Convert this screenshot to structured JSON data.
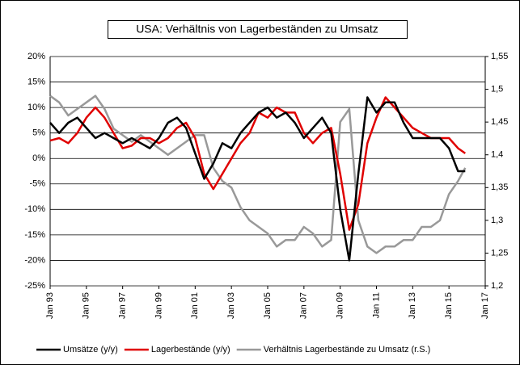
{
  "chart_data": {
    "type": "line",
    "title": "USA: Verhältnis von Lagerbeständen zu Umsatz",
    "x": [
      1993.0,
      1993.5,
      1994.0,
      1994.5,
      1995.0,
      1995.5,
      1996.0,
      1996.5,
      1997.0,
      1997.5,
      1998.0,
      1998.5,
      1999.0,
      1999.5,
      2000.0,
      2000.5,
      2001.0,
      2001.5,
      2002.0,
      2002.5,
      2003.0,
      2003.5,
      2004.0,
      2004.5,
      2005.0,
      2005.5,
      2006.0,
      2006.5,
      2007.0,
      2007.5,
      2008.0,
      2008.5,
      2009.0,
      2009.5,
      2010.0,
      2010.5,
      2011.0,
      2011.5,
      2012.0,
      2012.5,
      2013.0,
      2013.5,
      2014.0,
      2014.5,
      2015.0,
      2015.5,
      2015.9
    ],
    "series": [
      {
        "name": "Umsätze (y/y)",
        "color": "#000000",
        "values": [
          7,
          5,
          7,
          8,
          6,
          4,
          5,
          4,
          3,
          4,
          3,
          2,
          4,
          7,
          8,
          6,
          1,
          -4,
          -1,
          3,
          2,
          5,
          7,
          9,
          10,
          8,
          9,
          7,
          4,
          6,
          8,
          5,
          -10,
          -20,
          -3,
          12,
          9,
          11,
          11,
          7,
          4,
          4,
          4,
          4,
          2,
          -2.5,
          -2.5
        ]
      },
      {
        "name": "Lagerbestände (y/y)",
        "color": "#e00000",
        "values": [
          3.5,
          4,
          3,
          5,
          8,
          10,
          8,
          5,
          2,
          2.5,
          4,
          4,
          3,
          4,
          6,
          7,
          4,
          -3,
          -6,
          -3,
          0,
          3,
          5,
          9,
          8,
          10,
          9,
          9,
          5,
          3,
          5,
          6,
          -3,
          -14,
          -9,
          3,
          8,
          12,
          10,
          8,
          6,
          5,
          4,
          4,
          4,
          2,
          1
        ]
      },
      {
        "name": "Verhältnis Lagerbestände zu Umsatz (r.S.)",
        "color": "#999999",
        "axis": "y2",
        "values": [
          1.49,
          1.48,
          1.46,
          1.47,
          1.48,
          1.49,
          1.47,
          1.44,
          1.43,
          1.42,
          1.43,
          1.42,
          1.41,
          1.4,
          1.41,
          1.42,
          1.43,
          1.43,
          1.38,
          1.36,
          1.35,
          1.32,
          1.3,
          1.29,
          1.28,
          1.26,
          1.27,
          1.27,
          1.29,
          1.28,
          1.26,
          1.27,
          1.45,
          1.47,
          1.3,
          1.26,
          1.25,
          1.26,
          1.26,
          1.27,
          1.27,
          1.29,
          1.29,
          1.3,
          1.34,
          1.36,
          1.38
        ]
      }
    ],
    "xlim": [
      1993,
      2017
    ],
    "xticks": [
      {
        "value": 1993,
        "label": "Jan 93"
      },
      {
        "value": 1995,
        "label": "Jan 95"
      },
      {
        "value": 1997,
        "label": "Jan 97"
      },
      {
        "value": 1999,
        "label": "Jan 99"
      },
      {
        "value": 2001,
        "label": "Jan 01"
      },
      {
        "value": 2003,
        "label": "Jan 03"
      },
      {
        "value": 2005,
        "label": "Jan 05"
      },
      {
        "value": 2007,
        "label": "Jan 07"
      },
      {
        "value": 2009,
        "label": "Jan 09"
      },
      {
        "value": 2011,
        "label": "Jan 11"
      },
      {
        "value": 2013,
        "label": "Jan 13"
      },
      {
        "value": 2015,
        "label": "Jan 15"
      },
      {
        "value": 2017,
        "label": "Jan 17"
      }
    ],
    "ylim": [
      -25,
      20
    ],
    "yticks": [
      {
        "value": -25,
        "label": "-25%"
      },
      {
        "value": -20,
        "label": "-20%"
      },
      {
        "value": -15,
        "label": "-15%"
      },
      {
        "value": -10,
        "label": "-10%"
      },
      {
        "value": -5,
        "label": "-5%"
      },
      {
        "value": 0,
        "label": "0%"
      },
      {
        "value": 5,
        "label": "5%"
      },
      {
        "value": 10,
        "label": "10%"
      },
      {
        "value": 15,
        "label": "15%"
      },
      {
        "value": 20,
        "label": "20%"
      }
    ],
    "y2lim": [
      1.2,
      1.55
    ],
    "y2ticks": [
      {
        "value": 1.2,
        "label": "1,2"
      },
      {
        "value": 1.25,
        "label": "1,25"
      },
      {
        "value": 1.3,
        "label": "1,3"
      },
      {
        "value": 1.35,
        "label": "1,35"
      },
      {
        "value": 1.4,
        "label": "1,4"
      },
      {
        "value": 1.45,
        "label": "1,45"
      },
      {
        "value": 1.5,
        "label": "1,5"
      },
      {
        "value": 1.55,
        "label": "1,55"
      }
    ],
    "grid": true,
    "legend": "bottom"
  }
}
